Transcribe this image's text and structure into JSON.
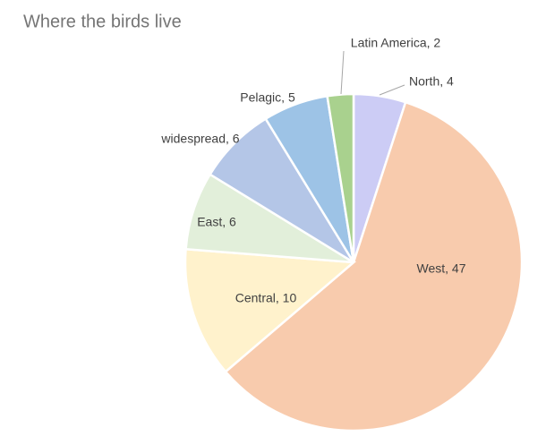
{
  "chart_data": {
    "type": "pie",
    "title": "Where the birds live",
    "values": [
      4,
      47,
      10,
      6,
      6,
      5,
      2
    ],
    "value_labels": [
      "North, 4",
      "West, 47",
      "Central, 10",
      "East, 6",
      "widespread, 6",
      "Pelagic, 5",
      "Latin America, 2"
    ],
    "colors": [
      "#ccccf5",
      "#f8cbad",
      "#fff2cc",
      "#e2efda",
      "#b4c6e7",
      "#9dc3e6",
      "#a9d18e"
    ]
  }
}
